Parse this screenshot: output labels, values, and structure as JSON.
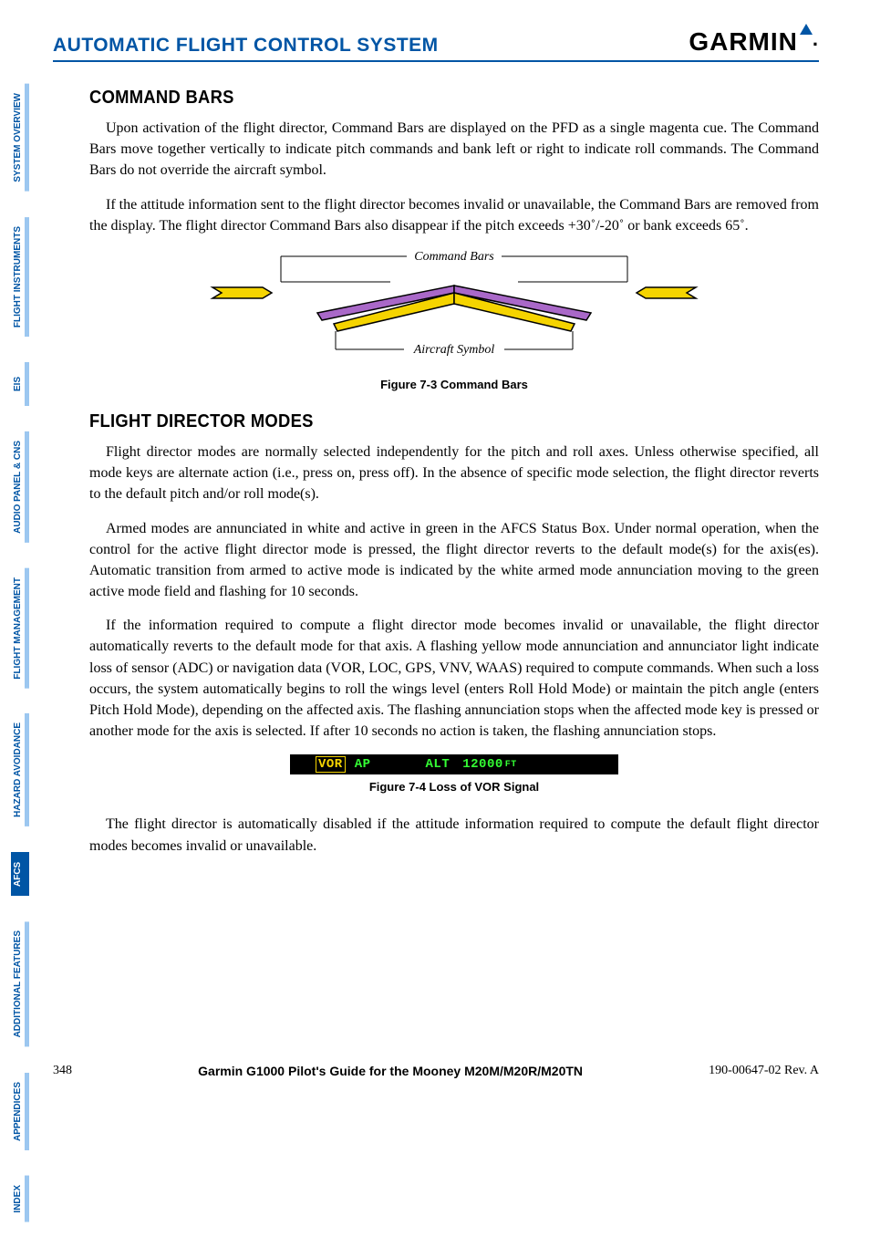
{
  "header": {
    "section_title": "AUTOMATIC FLIGHT CONTROL SYSTEM",
    "brand": "GARMIN",
    "brand_color": "#0055a5"
  },
  "tabs": [
    {
      "label": "SYSTEM OVERVIEW",
      "active": false
    },
    {
      "label": "FLIGHT INSTRUMENTS",
      "active": false
    },
    {
      "label": "EIS",
      "active": false
    },
    {
      "label": "AUDIO PANEL & CNS",
      "active": false
    },
    {
      "label": "FLIGHT MANAGEMENT",
      "active": false
    },
    {
      "label": "HAZARD AVOIDANCE",
      "active": false
    },
    {
      "label": "AFCS",
      "active": true
    },
    {
      "label": "ADDITIONAL FEATURES",
      "active": false
    },
    {
      "label": "APPENDICES",
      "active": false
    },
    {
      "label": "INDEX",
      "active": false
    }
  ],
  "sections": {
    "command_bars": {
      "heading": "COMMAND BARS",
      "p1": "Upon activation of the flight director, Command Bars are displayed on the PFD as a single magenta cue.  The Command Bars move together vertically to indicate pitch commands and bank left or right to indicate roll commands.  The Command Bars do not override the aircraft symbol.",
      "p2": "If the attitude information sent to the flight director becomes invalid or unavailable, the Command Bars are removed from the display.  The flight director Command Bars also disappear if the pitch exceeds +30˚/-20˚ or bank exceeds 65˚."
    },
    "figure_7_3": {
      "label_top": "Command Bars",
      "label_bottom": "Aircraft Symbol",
      "caption": "Figure 7-3  Command Bars",
      "colors": {
        "command_bar_fill": "#a968c8",
        "command_bar_stroke": "#000000",
        "aircraft_fill": "#f5d400",
        "aircraft_stroke": "#000000",
        "leader_color": "#000000"
      }
    },
    "flight_director_modes": {
      "heading": "FLIGHT DIRECTOR MODES",
      "p1": "Flight director modes are normally selected independently for the pitch and roll axes.  Unless otherwise specified, all mode keys are alternate action (i.e., press on, press off).  In the absence of specific mode selection, the flight director reverts to the default pitch and/or roll mode(s).",
      "p2": "Armed modes are annunciated in white and active in green in the AFCS Status Box.  Under normal operation, when the control for the active flight director mode is pressed, the flight director reverts to the default mode(s) for the axis(es).  Automatic transition from armed to active mode is indicated by the white armed mode annunciation moving to the green active mode field and flashing for 10 seconds.",
      "p3": "If the information required to compute a flight director mode becomes invalid or unavailable, the flight director automatically reverts to the default mode for that axis.  A flashing yellow mode annunciation and annunciator light indicate loss of sensor (ADC) or navigation data (VOR, LOC, GPS, VNV, WAAS) required to compute commands.  When such a loss occurs, the system automatically begins to roll the wings level (enters Roll Hold Mode) or maintain the pitch angle (enters Pitch Hold Mode), depending on the affected axis.  The flashing annunciation stops when the affected mode key is pressed or another mode for the axis is selected.  If after 10 seconds no action is taken, the flashing annunciation stops.",
      "p4": "The flight director is automatically disabled if the attitude information required to compute the default flight director modes becomes invalid or unavailable."
    },
    "figure_7_4": {
      "caption": "Figure 7-4  Loss of VOR Signal",
      "status": {
        "vor": "VOR",
        "ap": "AP",
        "alt": "ALT",
        "value": "12000",
        "unit": "FT",
        "bg": "#000000",
        "vor_color": "#f5d400",
        "active_color": "#34ff34"
      }
    }
  },
  "footer": {
    "page_number": "348",
    "book_title": "Garmin G1000 Pilot's Guide for the Mooney M20M/M20R/M20TN",
    "revision": "190-00647-02  Rev. A"
  }
}
